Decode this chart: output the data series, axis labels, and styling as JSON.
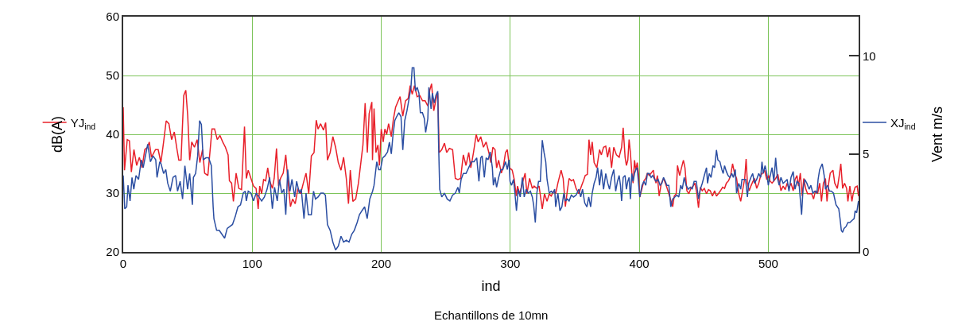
{
  "chart_data": {
    "type": "line",
    "xlabel": "ind",
    "ylabel": "dB(A)",
    "y2label": "Vent m/s",
    "annotations": [
      "Echantillons de 10mn"
    ],
    "xlim": [
      0,
      570
    ],
    "xticks": [
      0,
      100,
      200,
      300,
      400,
      500
    ],
    "ylim": [
      20,
      60
    ],
    "yticks": [
      20,
      30,
      40,
      50,
      60
    ],
    "y2lim": [
      0,
      12
    ],
    "y2ticks": [
      0,
      5,
      10
    ],
    "grid": true,
    "legend": "left",
    "marker": "none",
    "line_style": "solid",
    "series": [
      {
        "name": "YJ$_{ind}$",
        "color": "#e8202a",
        "x": [
          0,
          1,
          3.1,
          4.8,
          6.3,
          8.3,
          10.4,
          12.5,
          14.6,
          16.7,
          18.8,
          20.2,
          21.9,
          25,
          27.1,
          29.2,
          31.3,
          33.3,
          35.4,
          37.5,
          39.6,
          41.7,
          43.1,
          44.8,
          46.9,
          48.5,
          50,
          51.5,
          53.1,
          55.2,
          57.3,
          59.4,
          61.5,
          63.1,
          65.6,
          68.8,
          70.8,
          72.9,
          75,
          77.1,
          79.2,
          81.3,
          82.3,
          84,
          85.4,
          87.5,
          89.6,
          91.7,
          94,
          95.4,
          96.9,
          99,
          101,
          103,
          104.6,
          105.8,
          107.3,
          108.8,
          110.4,
          112,
          113.5,
          115.6,
          117,
          118.8,
          120.4,
          121.9,
          124,
          126,
          127.5,
          129.6,
          131.3,
          133.3,
          135.4,
          137.5,
          139.6,
          141.7,
          143.8,
          145.8,
          147.9,
          149.6,
          151,
          153,
          155.2,
          156.9,
          158.3,
          160.4,
          162.5,
          164.6,
          166.7,
          168.8,
          170.8,
          172.9,
          174.6,
          176,
          178,
          180.2,
          182.3,
          184.4,
          185.8,
          187.5,
          189.2,
          190.6,
          192.7,
          193.2,
          194.4,
          195.9,
          197.4,
          198.6,
          200,
          201.5,
          202.8,
          204.2,
          205.7,
          207.8,
          209.4,
          211.1,
          213.2,
          214.6,
          216.7,
          218.8,
          220.9,
          222.4,
          224,
          225.7,
          227.8,
          229.9,
          232,
          234,
          236.1,
          237.6,
          239,
          240.7,
          242.4,
          243.8,
          244.9,
          246.9,
          249,
          250.7,
          252.8,
          255.3,
          257.4,
          259.4,
          261.5,
          263.6,
          265.7,
          267.8,
          269.4,
          271.5,
          273.6,
          275.1,
          277.1,
          279.2,
          281.3,
          283.4,
          284.9,
          286.5,
          288.2,
          289.4,
          291,
          293.1,
          294.8,
          296.3,
          297.7,
          299.4,
          301.5,
          303.1,
          304.6,
          305.6,
          307.3,
          309.4,
          311.5,
          312.9,
          315,
          317.1,
          318.5,
          320.6,
          322.3,
          324.8,
          326.5,
          328.5,
          330.2,
          331.7,
          333.8,
          335.2,
          336.9,
          339.4,
          341,
          342.7,
          344.2,
          345.6,
          347.3,
          349,
          351,
          353.1,
          355.2,
          356.7,
          358.1,
          359.8,
          361,
          362.3,
          363.5,
          365,
          367.1,
          369.2,
          370.6,
          372.3,
          374,
          375.4,
          376.9,
          378.5,
          380.2,
          382.3,
          384.4,
          384.8,
          386.3,
          387.5,
          389,
          390,
          391.1,
          392.1,
          393.1,
          394.2,
          395.2,
          396.3,
          397.3,
          398.4,
          399.4,
          400.4,
          402.1,
          403.6,
          405,
          406.3,
          407.7,
          409.2,
          410.9,
          411.9,
          413,
          414,
          415.4,
          417.1,
          418.8,
          420.2,
          421.3,
          422.9,
          424.4,
          425.9,
          427.1,
          428.6,
          429.6,
          431.3,
          432.7,
          434.2,
          435.4,
          436.9,
          438.4,
          440,
          441.7,
          443.1,
          444.6,
          445.9,
          447.3,
          448.8,
          450.4,
          452.1,
          453.6,
          455,
          456.7,
          458.4,
          459.8,
          461.3,
          462.9,
          464.6,
          466.1,
          467.5,
          469.2,
          470.8,
          472.3,
          473.8,
          475.4,
          477.1,
          478.6,
          481.7,
          482.8,
          483.8,
          485.2,
          486.5,
          487.9,
          489.3,
          491,
          492.6,
          494.1,
          495.5,
          497.1,
          498.8,
          500.2,
          501.2,
          502.9,
          504.3,
          505.7,
          507.4,
          508.4,
          509.8,
          511.5,
          513.1,
          514.6,
          516,
          517.6,
          519.3,
          520.7,
          522.2,
          523.4,
          524.8,
          526.3,
          527.5,
          528.9,
          530.4,
          532,
          533.6,
          535.1,
          536.5,
          538.2,
          539.8,
          541.2,
          542.7,
          544.3,
          545.5,
          546.8,
          548,
          550.1,
          551.5,
          553.5,
          555,
          556.2,
          557.6,
          559.1,
          560.7,
          561.7,
          563.2,
          564.8,
          565.8,
          567.3,
          568.9,
          569.9
        ],
        "values": [
          44.6,
          33.9,
          39.1,
          38.9,
          33.6,
          37.4,
          34.7,
          36.1,
          34.3,
          37.4,
          37.8,
          38.7,
          36.1,
          37.4,
          37.4,
          35.2,
          38.7,
          42.3,
          41.8,
          39.1,
          40.4,
          37.4,
          35.6,
          35.6,
          46.6,
          47.5,
          43.1,
          35.6,
          38.7,
          37.8,
          39.1,
          35.2,
          37.4,
          33.4,
          33,
          40.9,
          40.9,
          39.1,
          39.8,
          38.7,
          37.8,
          36.5,
          32.1,
          31.7,
          28.6,
          33.4,
          30.8,
          30.6,
          41.3,
          32.5,
          33.9,
          32.5,
          31.2,
          30.8,
          27.3,
          31.2,
          29.9,
          32.3,
          32.1,
          34.3,
          32.1,
          30.8,
          32.5,
          37.6,
          31.2,
          32.5,
          33.4,
          36.5,
          32.5,
          27.7,
          29,
          28.2,
          30.8,
          29.9,
          31.7,
          33.4,
          29.9,
          36.3,
          36.9,
          42.4,
          40.9,
          41.8,
          40.7,
          42,
          35.6,
          36.9,
          39.6,
          37.8,
          35.2,
          33.9,
          36.1,
          32.5,
          28.2,
          33.9,
          28.6,
          29,
          31.7,
          35.6,
          38.2,
          45.3,
          36.9,
          43.5,
          45.5,
          35.6,
          44.4,
          36.9,
          38.2,
          34.7,
          40.9,
          38.7,
          40.9,
          40,
          41.8,
          39.6,
          42.6,
          44.6,
          45.7,
          46.4,
          43.1,
          45.7,
          46.1,
          48.3,
          46.8,
          48.3,
          46.4,
          46.6,
          45.7,
          45.7,
          44.8,
          47.5,
          48.6,
          44,
          45.9,
          47,
          36.9,
          37.4,
          38.5,
          36.9,
          37.6,
          37.4,
          32.5,
          32.3,
          32.5,
          36.5,
          34.7,
          36.9,
          34.3,
          36.9,
          40,
          38.7,
          39.6,
          37.8,
          38.7,
          36.9,
          35.2,
          37.8,
          37.4,
          34.3,
          35.6,
          33.4,
          34.7,
          36.9,
          37.4,
          34.3,
          33.9,
          32.3,
          29.5,
          31.2,
          29.9,
          31.7,
          33.4,
          29.9,
          32.5,
          30.8,
          31.2,
          30.8,
          31.2,
          27.3,
          29.9,
          28.6,
          29.9,
          29.5,
          30.4,
          29.9,
          31.7,
          33.9,
          32.5,
          27.7,
          30.4,
          32.5,
          32.1,
          32.3,
          30.8,
          29.9,
          31.2,
          32.1,
          33,
          33.2,
          39.1,
          36.5,
          38.7,
          35.2,
          34.3,
          37.4,
          36.5,
          37.8,
          38,
          36.1,
          37.8,
          34.3,
          37.8,
          36.5,
          36.1,
          36.5,
          37.8,
          41.1,
          36.1,
          34.7,
          35.6,
          39.1,
          36.9,
          33.4,
          31.7,
          35.6,
          33.9,
          35.2,
          33.4,
          29.3,
          30.8,
          32.1,
          32.5,
          33.4,
          33,
          33.4,
          33.9,
          32.5,
          31.7,
          33,
          29.5,
          31.7,
          32.5,
          31.7,
          31,
          29.9,
          28.8,
          27.7,
          29.5,
          29.9,
          34.7,
          33,
          34.3,
          35.6,
          34.3,
          30.4,
          29.9,
          30.8,
          31.2,
          31.7,
          29.9,
          27.5,
          31,
          30.4,
          30.8,
          29.9,
          30.6,
          30.4,
          29.5,
          30.4,
          29.5,
          29.9,
          30.4,
          31,
          30.8,
          31.7,
          32.1,
          33,
          35,
          33.4,
          32.5,
          29.9,
          28.6,
          32.5,
          35.8,
          31.7,
          30.4,
          31.2,
          31.9,
          32.5,
          30.8,
          31.7,
          33,
          33.4,
          33.9,
          32.3,
          33,
          32.1,
          31.7,
          32.1,
          32.5,
          33.2,
          32.1,
          30.4,
          31.2,
          30.6,
          31.7,
          30.8,
          31.7,
          30.4,
          32.3,
          33,
          31.2,
          33.4,
          29.5,
          32.5,
          30.8,
          29.9,
          29.9,
          29.9,
          29,
          30.4,
          29.9,
          31.7,
          28.6,
          31.7,
          32.5,
          28.6,
          31.7,
          33.4,
          33.9,
          31.7,
          30.8,
          33,
          35,
          30.8,
          31.7,
          30.8,
          28.6,
          31.2,
          28.6,
          29.9,
          31,
          31.2,
          29.5
        ]
      },
      {
        "name": "XJ$_{ind}$",
        "color": "#2b4ea2",
        "axis": "y2",
        "x": [
          0,
          1.2,
          2.7,
          3.7,
          5.3,
          6.8,
          8.2,
          9.9,
          11.9,
          14,
          15.5,
          16.9,
          19,
          21.1,
          23.1,
          25.2,
          26.2,
          28.3,
          29.3,
          31.3,
          33,
          34.5,
          36.5,
          38.6,
          40.6,
          42.1,
          44.1,
          46,
          47.8,
          49.9,
          51.5,
          53.6,
          54.4,
          56.1,
          57.7,
          59.2,
          60.6,
          62,
          64.1,
          66.2,
          68.3,
          69.7,
          70.3,
          72.4,
          74.4,
          76.5,
          78.6,
          80.6,
          82.7,
          84.7,
          86.8,
          88.9,
          90.9,
          93,
          94.6,
          95.4,
          96.9,
          99,
          101,
          103,
          105.2,
          107.3,
          109.4,
          111.5,
          113.5,
          115.6,
          117.3,
          119.4,
          121.1,
          122.9,
          124.5,
          126,
          127.5,
          129.2,
          130.8,
          132.9,
          134.4,
          136.5,
          138,
          140.1,
          141.7,
          143.5,
          145.8,
          147.5,
          149,
          151,
          153.1,
          155.2,
          156.7,
          158.3,
          160.4,
          162.5,
          164.6,
          166.7,
          168.8,
          170.8,
          172.9,
          175,
          177.1,
          179.1,
          181.3,
          183.1,
          185,
          187.1,
          189.1,
          191.1,
          193.3,
          194.4,
          196.5,
          198,
          199.4,
          201.1,
          202.8,
          204.9,
          206.3,
          207.8,
          209,
          210.5,
          211.9,
          213.6,
          215.3,
          216.7,
          218.2,
          219.9,
          221.5,
          223,
          224,
          225.3,
          226.5,
          227.8,
          229.2,
          230.3,
          231.9,
          233.4,
          234.4,
          236.1,
          236.9,
          238.6,
          239.6,
          241.1,
          242.4,
          243.8,
          244.4,
          245.3,
          246.9,
          249,
          251.1,
          253.2,
          255.3,
          257.4,
          259.4,
          260.5,
          261.9,
          263.6,
          265.7,
          267.8,
          269.9,
          271.9,
          274,
          275.7,
          277.1,
          278.2,
          279.9,
          281.3,
          282.8,
          284.4,
          286.1,
          286.9,
          288.2,
          289.4,
          291,
          292.7,
          294.2,
          296.3,
          297.7,
          299,
          299.8,
          301,
          302.5,
          303.6,
          304.8,
          306.1,
          307.7,
          309.4,
          310.8,
          312.3,
          314,
          315.6,
          317.1,
          318.1,
          319.4,
          320.6,
          321.9,
          323.3,
          324.8,
          326.1,
          327.5,
          328.5,
          330.2,
          331.7,
          333.1,
          334.4,
          335.2,
          336.9,
          338.5,
          340,
          341.5,
          342.7,
          344.2,
          345.6,
          347.3,
          349,
          351,
          353.1,
          354.6,
          356,
          357.7,
          359.4,
          360.8,
          362.3,
          363.5,
          365,
          366.5,
          367.7,
          369.2,
          370.6,
          372.3,
          374,
          375.6,
          376.9,
          378.5,
          380.2,
          381.7,
          383.1,
          384.4,
          385.4,
          386.3,
          387.5,
          389,
          390,
          391.1,
          392.1,
          393.1,
          394.2,
          395.2,
          396.3,
          397.3,
          398.4,
          399.4,
          400.4,
          402.1,
          403.6,
          405,
          406.3,
          407.7,
          409.2,
          410.4,
          411.9,
          413,
          414.6,
          416.1,
          417.5,
          418.8,
          420.2,
          421.3,
          422.9,
          424.4,
          425.9,
          427.5,
          429.2,
          430.6,
          432.1,
          433.3,
          434.8,
          436.3,
          437.9,
          439.6,
          441,
          442.5,
          444.2,
          445.9,
          447.3,
          448.8,
          450.4,
          452.1,
          452.9,
          454.2,
          455.6,
          457.1,
          458.4,
          459.8,
          460.9,
          462.5,
          464,
          465,
          466.1,
          467.5,
          468.8,
          470.2,
          471.7,
          472.9,
          474.4,
          475.4,
          477.1,
          478.6,
          479.6,
          482.4,
          483.8,
          484.8,
          486.5,
          487.9,
          489.3,
          491,
          492.6,
          494.1,
          495.1,
          496.1,
          497.5,
          498.8,
          500,
          501.2,
          502.9,
          504.3,
          505.7,
          507,
          508.4,
          509.8,
          511.5,
          513.1,
          514.6,
          516,
          517.6,
          519.3,
          520.7,
          522.2,
          523.8,
          525.8,
          526.9,
          528.3,
          529.9,
          531.6,
          533,
          534.5,
          536.1,
          537.7,
          538.6,
          539.8,
          541.8,
          543.3,
          544.3,
          545.9,
          547.4,
          548.8,
          550.5,
          552.5,
          554.6,
          555.6,
          556.6,
          557.6,
          558.7,
          560.3,
          561.7,
          563.2,
          564.8,
          566.5,
          567.3,
          568.5,
          569.9
        ],
        "values": [
          3.9,
          2.2,
          2.3,
          3.4,
          2.6,
          3.8,
          3.2,
          3.9,
          3.7,
          4.7,
          4.3,
          4.8,
          5.5,
          4.6,
          4.9,
          4.7,
          3.8,
          4.6,
          4.5,
          4,
          4.2,
          3.5,
          3.1,
          3.8,
          3.9,
          3.1,
          3.6,
          2.7,
          4.4,
          3.2,
          4,
          2.4,
          3.8,
          4,
          4.9,
          6.7,
          6.5,
          4.7,
          4.8,
          4.8,
          4.4,
          2.3,
          1.7,
          1.1,
          1.1,
          0.9,
          0.7,
          1.2,
          1.3,
          1.4,
          1.8,
          2.3,
          2.4,
          3,
          3.1,
          2.6,
          3.1,
          3,
          2.6,
          3,
          2.8,
          2.6,
          2.8,
          3.2,
          3.8,
          2.2,
          3.3,
          2.6,
          3.7,
          3,
          3.2,
          1.9,
          4.2,
          3.1,
          3.7,
          2.8,
          3.6,
          3,
          3.2,
          1.7,
          3,
          1.9,
          1.9,
          3.1,
          2.7,
          2.8,
          3,
          3,
          2.9,
          1.4,
          1.1,
          0.5,
          0.1,
          0.3,
          0.8,
          0.5,
          0.6,
          0.5,
          0.9,
          1.1,
          1.5,
          1.9,
          2.1,
          2.3,
          1.7,
          2.7,
          3.1,
          3.4,
          4.6,
          4.2,
          4.2,
          4.8,
          4.9,
          5.1,
          5.6,
          5,
          5.9,
          6.7,
          6.9,
          7.1,
          6.9,
          5.2,
          6.7,
          7.2,
          7.8,
          8.4,
          9.4,
          9.4,
          8.2,
          8.4,
          8.1,
          7.1,
          7.1,
          6.8,
          6.1,
          6.8,
          8.4,
          7.3,
          8.1,
          7.6,
          8,
          8.2,
          5.6,
          3.2,
          2.8,
          3,
          2.7,
          2.6,
          2.9,
          3,
          3.3,
          3,
          3.7,
          4,
          4,
          4.3,
          4.6,
          4.6,
          4.8,
          3.6,
          4.8,
          4.9,
          3.8,
          4.8,
          4.7,
          5.1,
          4.3,
          3.4,
          3.8,
          3.3,
          3.8,
          4.2,
          4.2,
          4.6,
          4.2,
          4.7,
          3.6,
          3.4,
          3.7,
          3,
          2.1,
          3.2,
          2.8,
          3.8,
          2.8,
          3.2,
          3,
          3.1,
          2.8,
          2.4,
          1.5,
          3,
          3.6,
          3.6,
          5.7,
          5.1,
          4.6,
          3.7,
          3,
          3.1,
          3,
          3.2,
          2.3,
          3,
          2.1,
          2.3,
          3,
          2.6,
          2.7,
          2.6,
          2.9,
          2.8,
          2.9,
          3.2,
          2.8,
          3.2,
          2.5,
          2.3,
          2.8,
          2.3,
          3,
          3.5,
          3.8,
          4.3,
          3.4,
          4.2,
          3.2,
          4,
          3.5,
          3.2,
          3.8,
          4.2,
          3.1,
          3.6,
          3.9,
          3.4,
          2.6,
          3.8,
          3.9,
          3.2,
          3.6,
          3.8,
          2.7,
          4,
          3.6,
          4,
          4.2,
          4.3,
          3.5,
          2.8,
          3.4,
          3.6,
          3.4,
          4,
          4,
          3.8,
          3.9,
          3.7,
          3.6,
          3.7,
          3.4,
          3.5,
          3.8,
          3.6,
          3.4,
          3.4,
          2.3,
          2.7,
          2.8,
          2.9,
          2.8,
          3.4,
          3.2,
          3.8,
          3.4,
          3.2,
          3.3,
          3.2,
          3.6,
          3.6,
          2.7,
          3.2,
          3.5,
          3.9,
          4.3,
          3.5,
          4,
          3.8,
          4.4,
          4.3,
          5.2,
          4.7,
          4.6,
          4.2,
          4,
          4.4,
          4.1,
          3.9,
          3.8,
          4,
          3.8,
          4.2,
          3,
          3.5,
          3.2,
          3.7,
          3.7,
          2.8,
          3.5,
          3.8,
          4,
          3.5,
          3.7,
          4,
          3.8,
          4.6,
          4,
          4.4,
          4,
          3.4,
          3.8,
          4.3,
          3.6,
          4.8,
          3.8,
          3.4,
          3.8,
          3.5,
          3.6,
          3.7,
          3.1,
          3.8,
          4.1,
          3.2,
          3.6,
          3.5,
          1.9,
          3.2,
          3.7,
          3.5,
          3.2,
          3.4,
          3,
          3.1,
          3,
          3.7,
          4.2,
          4.5,
          3.9,
          3.2,
          3.4,
          3.1,
          3.1,
          3,
          2.4,
          2.2,
          1.7,
          1.1,
          1,
          1.2,
          1.3,
          1.5,
          1.5,
          1.6,
          1.7,
          2.1,
          2,
          2.6
        ]
      }
    ]
  }
}
